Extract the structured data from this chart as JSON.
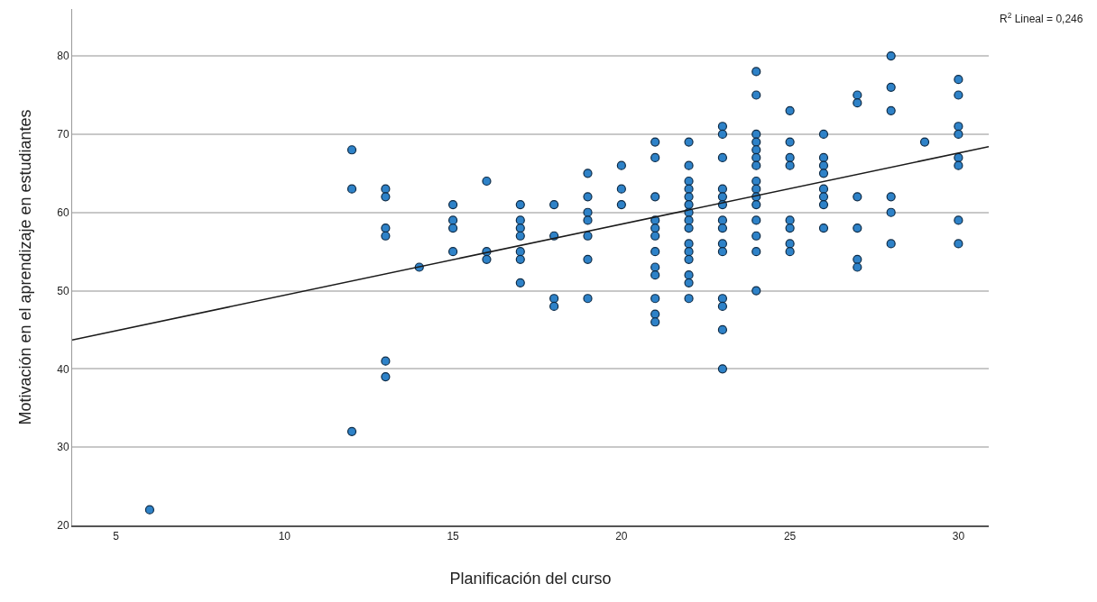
{
  "chart_data": {
    "type": "scatter",
    "xlabel": "Planificación del curso",
    "ylabel": "Motivación en el aprendizaje en estudiantes",
    "annotations": [
      "R$^{2}$ Lineal = 0,246"
    ],
    "xlim": [
      3.7,
      30.9
    ],
    "xticks": [
      5,
      10,
      15,
      20,
      25,
      30
    ],
    "ylim": [
      20,
      86
    ],
    "yticks": [
      20,
      30,
      40,
      50,
      60,
      70,
      80
    ],
    "grid": "y",
    "marker": "circle",
    "series": [
      {
        "color": "#2e82c8",
        "x": [
          6,
          12,
          12,
          12,
          13,
          13,
          13,
          13,
          13,
          13,
          14,
          15,
          15,
          15,
          15,
          16,
          16,
          16,
          17,
          17,
          17,
          17,
          17,
          17,
          17,
          18,
          18,
          18,
          18,
          19,
          19,
          19,
          19,
          19,
          19,
          19,
          20,
          20,
          20,
          21,
          21,
          21,
          21,
          21,
          21,
          21,
          21,
          21,
          21,
          21,
          21,
          22,
          22,
          22,
          22,
          22,
          22,
          22,
          22,
          22,
          22,
          22,
          22,
          22,
          22,
          22,
          23,
          23,
          23,
          23,
          23,
          23,
          23,
          23,
          23,
          23,
          23,
          23,
          23,
          23,
          24,
          24,
          24,
          24,
          24,
          24,
          24,
          24,
          24,
          24,
          24,
          24,
          24,
          24,
          24,
          25,
          25,
          25,
          25,
          25,
          25,
          25,
          25,
          26,
          26,
          26,
          26,
          26,
          26,
          26,
          26,
          27,
          27,
          27,
          27,
          27,
          27,
          28,
          28,
          28,
          28,
          28,
          28,
          29,
          30,
          30,
          30,
          30,
          30,
          30,
          30,
          30
        ],
        "values": [
          22,
          68,
          63,
          32,
          63,
          62,
          58,
          57,
          41,
          39,
          53,
          61,
          59,
          58,
          55,
          64,
          55,
          54,
          61,
          59,
          58,
          57,
          55,
          54,
          51,
          61,
          57,
          49,
          48,
          65,
          62,
          60,
          59,
          57,
          54,
          49,
          66,
          63,
          61,
          69,
          67,
          62,
          59,
          58,
          57,
          55,
          53,
          52,
          49,
          47,
          46,
          69,
          66,
          64,
          63,
          62,
          61,
          60,
          59,
          58,
          56,
          55,
          54,
          52,
          51,
          49,
          71,
          70,
          67,
          63,
          62,
          61,
          59,
          58,
          56,
          55,
          49,
          48,
          45,
          40,
          78,
          75,
          70,
          69,
          68,
          67,
          66,
          64,
          63,
          62,
          61,
          59,
          57,
          55,
          50,
          73,
          69,
          67,
          66,
          59,
          58,
          56,
          55,
          70,
          67,
          66,
          65,
          63,
          62,
          61,
          58,
          75,
          74,
          62,
          58,
          54,
          53,
          80,
          76,
          73,
          62,
          60,
          56,
          69,
          77,
          75,
          71,
          70,
          67,
          66,
          59,
          56
        ]
      },
      {
        "type": "line",
        "color": "#1a1a1a",
        "marker": "none",
        "x": [
          3.7,
          30.9
        ],
        "values": [
          43.7,
          68.4
        ]
      }
    ]
  }
}
